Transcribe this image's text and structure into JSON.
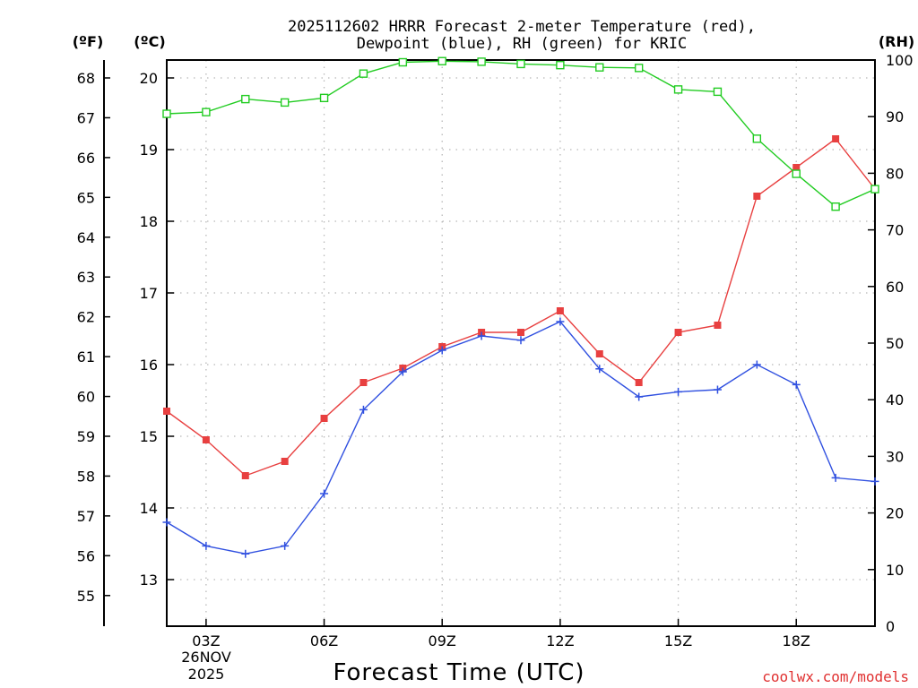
{
  "chart_data": {
    "type": "line",
    "title_lines": [
      "2025112602 HRRR Forecast 2-meter Temperature (red),",
      "Dewpoint (blue), RH (green) for KRIC"
    ],
    "xlabel": "Forecast Time (UTC)",
    "credit": "coolwx.com/models",
    "units": {
      "f": "(ºF)",
      "c": "(ºC)",
      "rh": "(RH)"
    },
    "x": [
      2,
      3,
      4,
      5,
      6,
      7,
      8,
      9,
      10,
      11,
      12,
      13,
      14,
      15,
      16,
      17,
      18,
      19,
      20
    ],
    "xlim": [
      2,
      20
    ],
    "x_ticks": [
      {
        "x": 3,
        "label": "03Z"
      },
      {
        "x": 6,
        "label": "06Z"
      },
      {
        "x": 9,
        "label": "09Z"
      },
      {
        "x": 12,
        "label": "12Z"
      },
      {
        "x": 15,
        "label": "15Z"
      },
      {
        "x": 18,
        "label": "18Z"
      }
    ],
    "date_label": [
      "26NOV",
      "2025"
    ],
    "c_axis": {
      "ylim": [
        12.35,
        20.25
      ],
      "ticks": [
        13,
        14,
        15,
        16,
        17,
        18,
        19,
        20
      ]
    },
    "f_axis": {
      "ticks": [
        55,
        56,
        57,
        58,
        59,
        60,
        61,
        62,
        63,
        64,
        65,
        66,
        67,
        68
      ]
    },
    "rh_axis": {
      "ylim": [
        0,
        100
      ],
      "ticks": [
        0,
        10,
        20,
        30,
        40,
        50,
        60,
        70,
        80,
        90,
        100
      ]
    },
    "series": [
      {
        "name": "2-meter Temperature",
        "unit": "C",
        "color": "#e84040",
        "marker": "filled-square",
        "values": [
          15.35,
          14.95,
          14.45,
          14.65,
          15.25,
          15.75,
          15.95,
          16.25,
          16.45,
          16.45,
          16.75,
          16.15,
          15.75,
          16.45,
          16.55,
          18.35,
          18.75,
          19.15,
          18.45
        ]
      },
      {
        "name": "Dewpoint",
        "unit": "C",
        "color": "#3050e0",
        "marker": "plus",
        "values": [
          13.8,
          13.47,
          13.36,
          13.47,
          14.2,
          15.37,
          15.9,
          16.2,
          16.4,
          16.34,
          16.6,
          15.94,
          15.55,
          15.62,
          15.65,
          16.0,
          15.72,
          14.42,
          14.37
        ]
      },
      {
        "name": "RH",
        "unit": "%",
        "color": "#22cc22",
        "marker": "open-square",
        "values": [
          90.5,
          90.8,
          93.1,
          92.5,
          93.3,
          97.6,
          99.6,
          99.8,
          99.7,
          99.3,
          99.1,
          98.7,
          98.6,
          94.8,
          94.4,
          86.1,
          79.9,
          74.1,
          77.2
        ]
      }
    ]
  }
}
